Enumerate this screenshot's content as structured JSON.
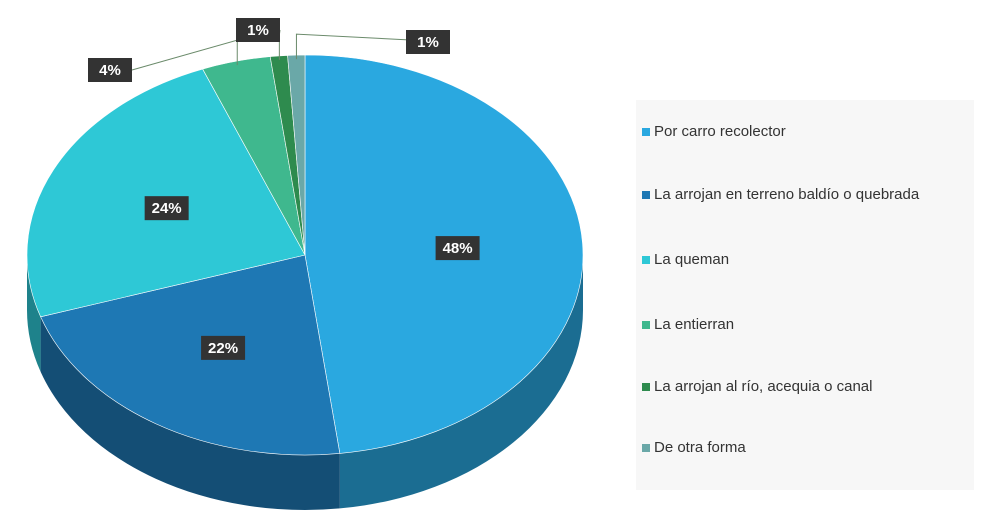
{
  "chart_data": {
    "type": "pie",
    "categories": [
      "Por carro recolector",
      "La arrojan en terreno baldío o quebrada",
      "La queman",
      "La entierran",
      "La arrojan al río, acequia o canal",
      "De otra forma"
    ],
    "values": [
      48,
      22,
      24,
      4,
      1,
      1
    ],
    "value_labels": [
      "48%",
      "22%",
      "24%",
      "4%",
      "1%",
      "1%"
    ],
    "colors": [
      "#2aa8e0",
      "#1e78b4",
      "#2ec8d6",
      "#3fb88e",
      "#2e8b4e",
      "#6aa8a8"
    ],
    "legend": "right"
  }
}
